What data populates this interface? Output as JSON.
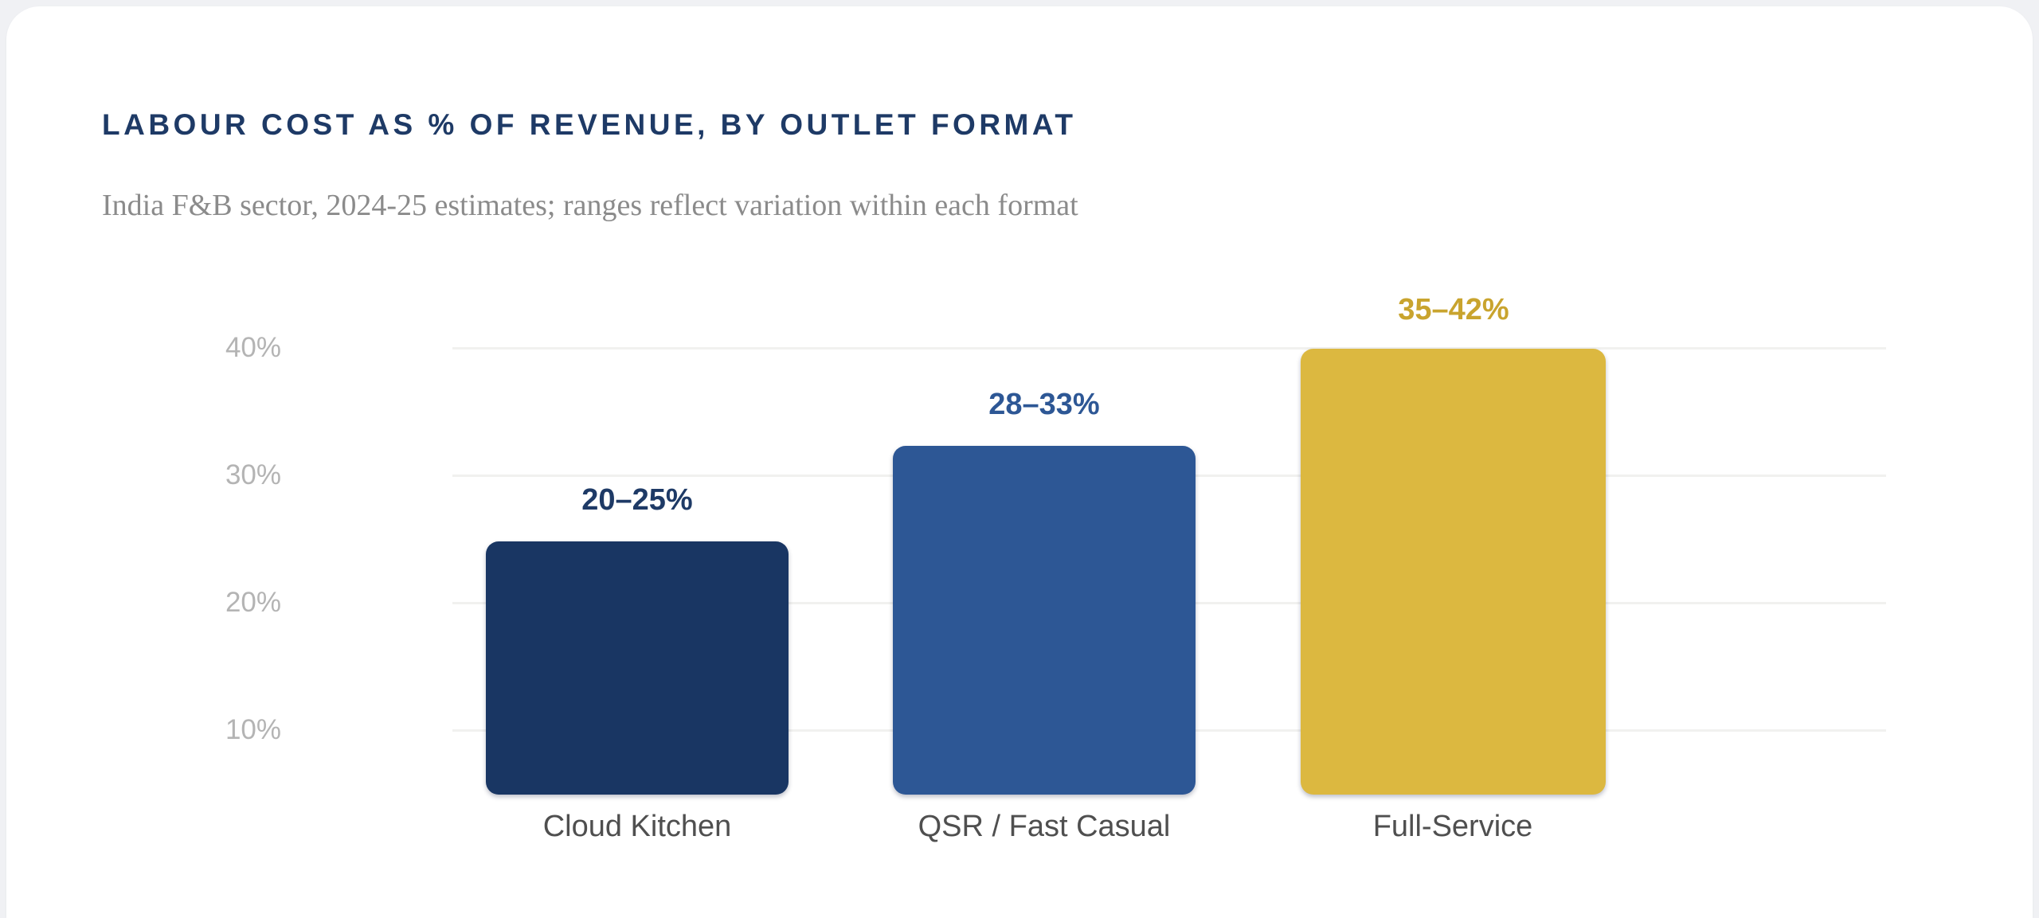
{
  "header": {
    "title": "LABOUR COST AS % OF REVENUE, BY OUTLET FORMAT",
    "subtitle": "India F&B sector, 2024-25 estimates; ranges reflect variation within each format",
    "title_color": "#1e3a66",
    "subtitle_color": "#8b8b8b"
  },
  "chart_data": {
    "type": "bar",
    "title": "LABOUR COST AS % OF REVENUE, BY OUTLET FORMAT",
    "subtitle": "India F&B sector, 2024-25 estimates; ranges reflect variation within each format",
    "categories": [
      "Cloud Kitchen",
      "QSR / Fast Casual",
      "Full-Service"
    ],
    "series": [
      {
        "name": "Labour cost as % of revenue",
        "range_low": [
          20,
          28,
          35
        ],
        "range_high": [
          25,
          33,
          42
        ],
        "labels": [
          "20–25%",
          "28–33%",
          "35–42%"
        ]
      }
    ],
    "bar_colors": [
      "#193663",
      "#2d5795",
      "#dcb840"
    ],
    "label_colors": [
      "#1e3a66",
      "#2d5795",
      "#c9a42e"
    ],
    "y_ticks": [
      "10%",
      "20%",
      "30%",
      "40%"
    ],
    "ylim": [
      0,
      45
    ],
    "xlabel": "",
    "ylabel": "",
    "grid": true,
    "legend": false
  },
  "page": {
    "background": "#f0f1f4",
    "card_background": "#ffffff",
    "gridline_color": "#f1f1ef",
    "ytick_color": "#b4b4b4",
    "category_label_color": "#4f4f4f"
  }
}
